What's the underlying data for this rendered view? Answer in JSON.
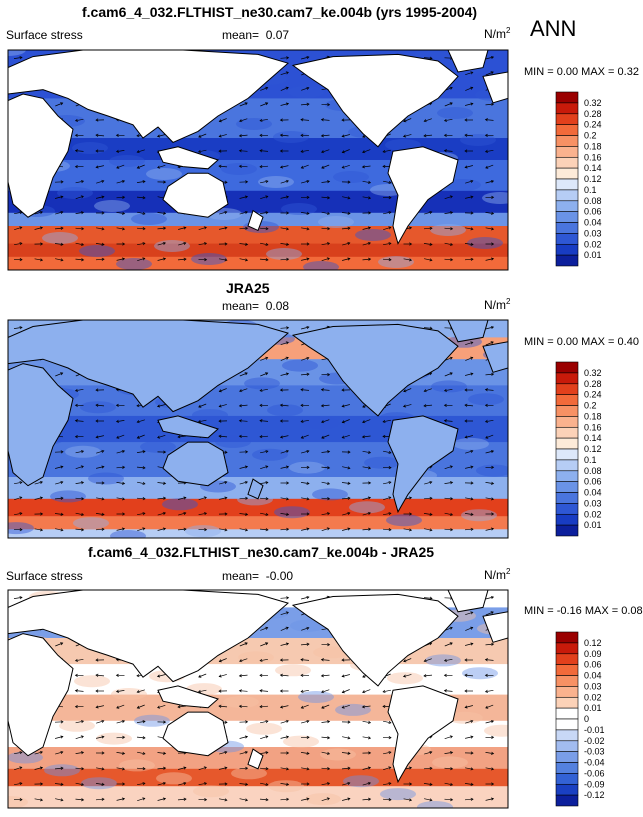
{
  "season": "ANN",
  "panels": [
    {
      "title": "f.cam6_4_032.FLTHIST_ne30.cam7_ke.004b (yrs 1995-2004)",
      "variable": "Surface stress",
      "mean_label": "mean=",
      "mean_value": "0.07",
      "units": "N/m",
      "units_sup": "2",
      "stats": "MIN =  0.00 MAX =  0.32",
      "colorbar": {
        "labels": [
          "0.32",
          "0.28",
          "0.24",
          "0.2",
          "0.18",
          "0.16",
          "0.14",
          "0.12",
          "0.1",
          "0.08",
          "0.06",
          "0.04",
          "0.03",
          "0.02",
          "0.01"
        ],
        "colors": [
          "#9a0000",
          "#c81a0a",
          "#e2401c",
          "#f26a3a",
          "#f79164",
          "#fab28e",
          "#fcd2b8",
          "#fdebd9",
          "#dde8fa",
          "#b6cdf5",
          "#8db0ee",
          "#6a93e6",
          "#4a75de",
          "#2e57d4",
          "#183cc3",
          "#0c1f9c"
        ]
      }
    },
    {
      "title": "JRA25",
      "variable": "",
      "mean_label": "mean=",
      "mean_value": "0.08",
      "units": "N/m",
      "units_sup": "2",
      "stats": "MIN =  0.00 MAX =  0.40",
      "colorbar": {
        "labels": [
          "0.32",
          "0.28",
          "0.24",
          "0.2",
          "0.18",
          "0.16",
          "0.14",
          "0.12",
          "0.1",
          "0.08",
          "0.06",
          "0.04",
          "0.03",
          "0.02",
          "0.01"
        ],
        "colors": [
          "#9a0000",
          "#c81a0a",
          "#e2401c",
          "#f26a3a",
          "#f79164",
          "#fab28e",
          "#fcd2b8",
          "#fdebd9",
          "#dde8fa",
          "#b6cdf5",
          "#8db0ee",
          "#6a93e6",
          "#4a75de",
          "#2e57d4",
          "#183cc3",
          "#0c1f9c"
        ]
      }
    },
    {
      "title": "f.cam6_4_032.FLTHIST_ne30.cam7_ke.004b - JRA25",
      "variable": "Surface stress",
      "mean_label": "mean=",
      "mean_value": "-0.00",
      "units": "N/m",
      "units_sup": "2",
      "stats": "MIN = -0.16 MAX =  0.08",
      "colorbar": {
        "labels": [
          "0.12",
          "0.09",
          "0.06",
          "0.04",
          "0.03",
          "0.02",
          "0.01",
          "0",
          "-0.01",
          "-0.02",
          "-0.03",
          "-0.04",
          "-0.06",
          "-0.09",
          "-0.12"
        ],
        "colors": [
          "#9a0000",
          "#c81a0a",
          "#e2401c",
          "#f26a3a",
          "#f79164",
          "#fab28e",
          "#fcd2b8",
          "#ffffff",
          "#ffffff",
          "#c8d8f6",
          "#a2bcf0",
          "#7a9ee8",
          "#5481df",
          "#3362d5",
          "#1a40c2",
          "#0c1f9c"
        ]
      }
    }
  ]
}
